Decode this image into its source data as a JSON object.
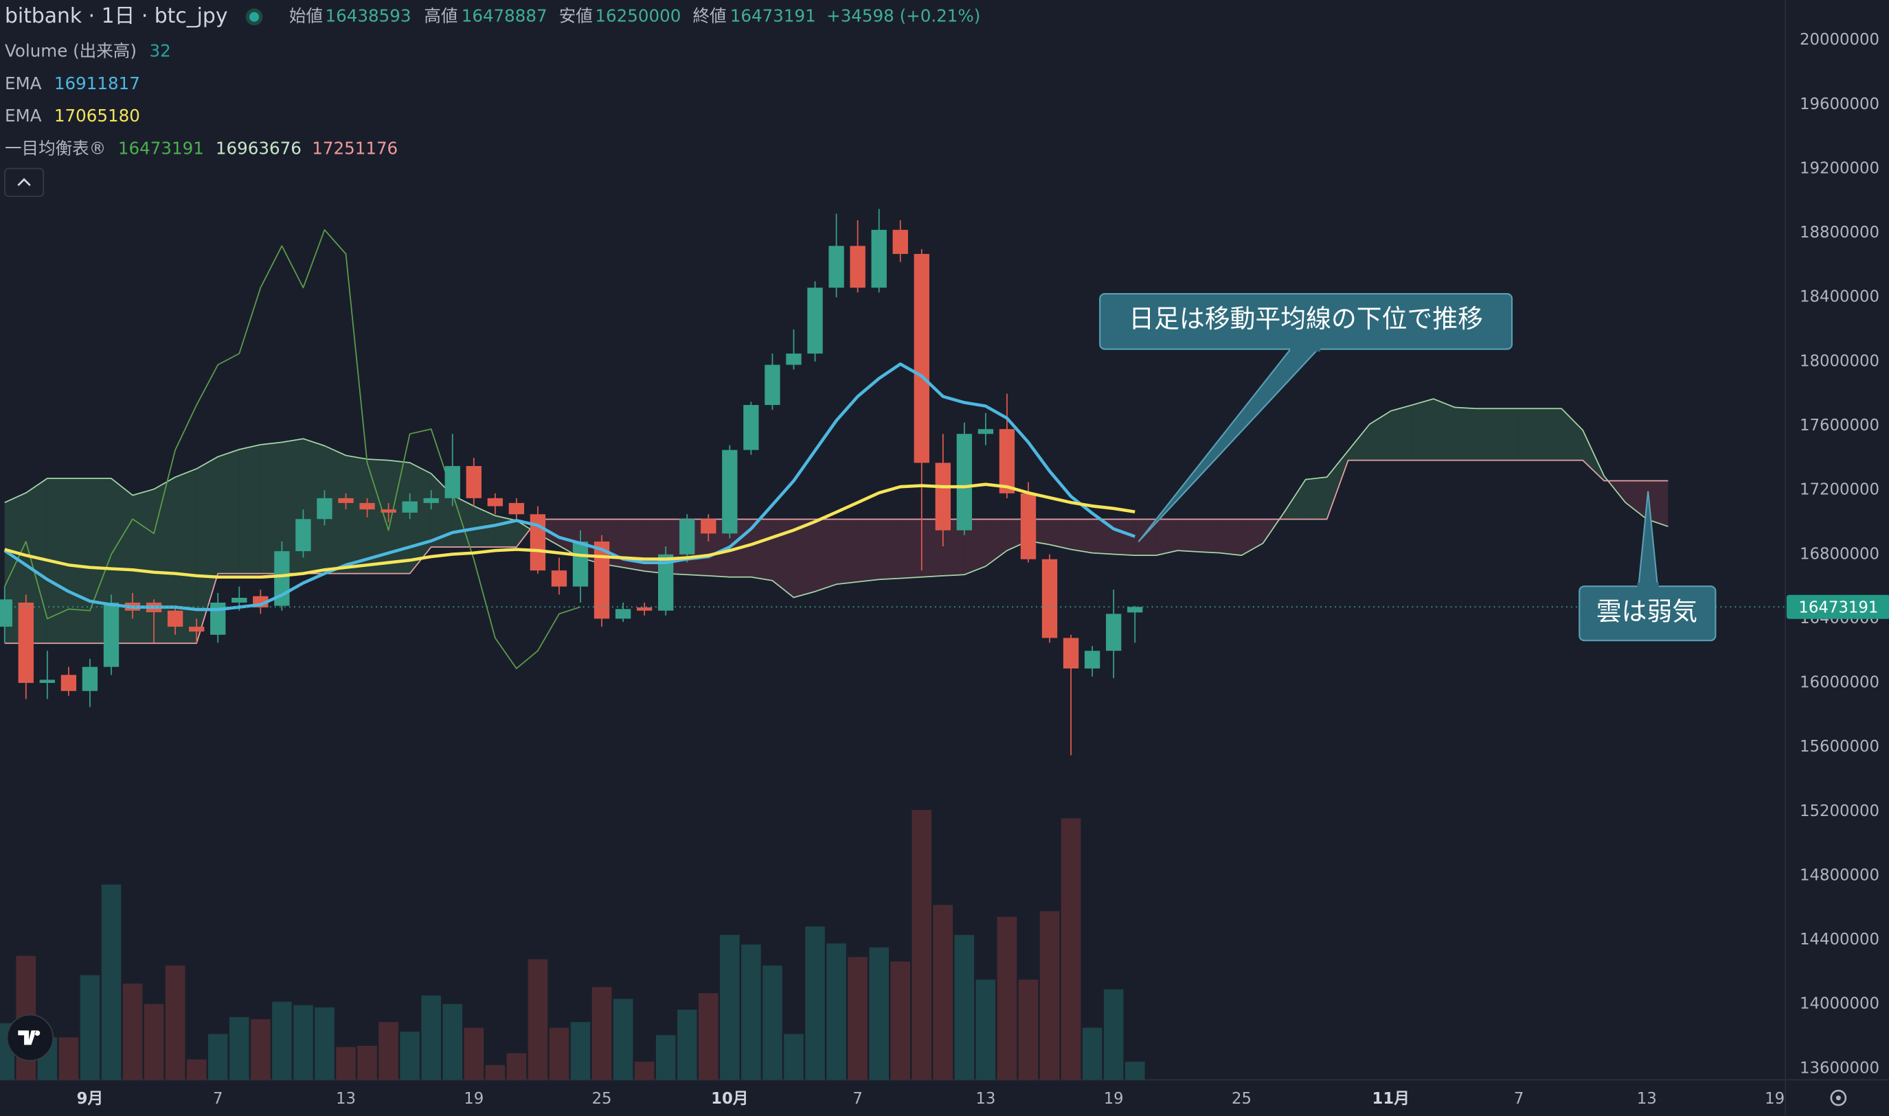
{
  "chart_data": {
    "type": "candlestick",
    "title": "bitbank · 1日 · btc_jpy",
    "ohlc_labels": [
      "始値",
      "高値",
      "安値",
      "終値"
    ],
    "change": "+34598 (+0.21%)",
    "up_color": "#36a08a",
    "down_color": "#e05a4c",
    "categories": [
      null,
      null,
      null,
      null,
      "9月",
      null,
      null,
      null,
      null,
      null,
      "7",
      null,
      null,
      null,
      null,
      null,
      "13",
      null,
      null,
      null,
      null,
      null,
      "19",
      null,
      null,
      null,
      null,
      null,
      "25",
      null,
      null,
      null,
      null,
      null,
      "10月",
      null,
      null,
      null,
      null,
      null,
      "7",
      null,
      null,
      null,
      null,
      null,
      "13",
      null,
      null,
      null,
      null,
      null,
      "19",
      null,
      null,
      null,
      null,
      null,
      "25",
      null,
      null,
      null,
      null,
      null,
      null,
      "11月",
      null,
      null,
      null,
      null,
      null,
      "7",
      null,
      null,
      null,
      null,
      null,
      "13",
      null,
      null,
      null,
      null,
      null,
      "19"
    ],
    "open": [
      16350000,
      16500000,
      16000000,
      16050000,
      15950000,
      16100000,
      16500000,
      16500000,
      16450000,
      16350000,
      16300000,
      16500000,
      16540000,
      16480000,
      16820000,
      17020000,
      17150000,
      17120000,
      17080000,
      17060000,
      17120000,
      17150000,
      17350000,
      17150000,
      17120000,
      17050000,
      16700000,
      16600000,
      16880000,
      16400000,
      16470000,
      16450000,
      16800000,
      17020000,
      16930000,
      17450000,
      17730000,
      17980000,
      18050000,
      18460000,
      18720000,
      18460000,
      18820000,
      18670000,
      17370000,
      16950000,
      17550000,
      17580000,
      17180000,
      16770000,
      16280000,
      16090000,
      16200000,
      16438593,
      null,
      null,
      null,
      null,
      null,
      null,
      null,
      null,
      null,
      null,
      null,
      null,
      null,
      null,
      null,
      null,
      null,
      null,
      null,
      null,
      null,
      null,
      null,
      null,
      null,
      null,
      null,
      null,
      null,
      null
    ],
    "high": [
      16600000,
      16550000,
      16200000,
      16100000,
      16150000,
      16550000,
      16560000,
      16520000,
      16480000,
      16400000,
      16560000,
      16600000,
      16580000,
      16880000,
      17080000,
      17200000,
      17180000,
      17150000,
      17120000,
      17180000,
      17200000,
      17550000,
      17400000,
      17180000,
      17150000,
      17100000,
      16780000,
      16950000,
      16920000,
      16500000,
      16500000,
      16850000,
      17050000,
      17050000,
      17480000,
      17750000,
      18050000,
      18200000,
      18500000,
      18920000,
      18880000,
      18950000,
      18880000,
      18700000,
      17550000,
      17620000,
      17680000,
      17800000,
      17250000,
      16800000,
      16300000,
      16230000,
      16580000,
      16478887,
      null,
      null,
      null,
      null,
      null,
      null,
      null,
      null,
      null,
      null,
      null,
      null,
      null,
      null,
      null,
      null,
      null,
      null,
      null,
      null,
      null,
      null,
      null,
      null,
      null,
      null,
      null,
      null,
      null,
      null
    ],
    "low": [
      16250000,
      15900000,
      15900000,
      15920000,
      15850000,
      16050000,
      16400000,
      16250000,
      16300000,
      16250000,
      16250000,
      16450000,
      16430000,
      16450000,
      16780000,
      16980000,
      17080000,
      17030000,
      17000000,
      17020000,
      17080000,
      17100000,
      17100000,
      17050000,
      17000000,
      16680000,
      16550000,
      16500000,
      16350000,
      16380000,
      16420000,
      16420000,
      16750000,
      16880000,
      16900000,
      17420000,
      17700000,
      17950000,
      18000000,
      18400000,
      18430000,
      18430000,
      18620000,
      16700000,
      16850000,
      16920000,
      17480000,
      17150000,
      16750000,
      16250000,
      15550000,
      16040000,
      16030000,
      16250000,
      null,
      null,
      null,
      null,
      null,
      null,
      null,
      null,
      null,
      null,
      null,
      null,
      null,
      null,
      null,
      null,
      null,
      null,
      null,
      null,
      null,
      null,
      null,
      null,
      null,
      null,
      null,
      null,
      null,
      null
    ],
    "close": [
      16520000,
      16000000,
      16020000,
      15950000,
      16100000,
      16500000,
      16450000,
      16440000,
      16350000,
      16320000,
      16500000,
      16530000,
      16470000,
      16820000,
      17020000,
      17150000,
      17120000,
      17080000,
      17060000,
      17130000,
      17150000,
      17350000,
      17150000,
      17100000,
      17050000,
      16700000,
      16600000,
      16880000,
      16400000,
      16460000,
      16450000,
      16800000,
      17020000,
      16930000,
      17450000,
      17730000,
      17980000,
      18050000,
      18460000,
      18720000,
      18460000,
      18820000,
      18670000,
      17370000,
      16950000,
      17550000,
      17580000,
      17180000,
      16770000,
      16280000,
      16090000,
      16200000,
      16430000,
      16473191,
      null,
      null,
      null,
      null,
      null,
      null,
      null,
      null,
      null,
      null,
      null,
      null,
      null,
      null,
      null,
      null,
      null,
      null,
      null,
      null,
      null,
      null,
      null,
      null,
      null,
      null,
      null,
      null,
      null,
      null
    ],
    "volume": {
      "name": "Volume (出来高)",
      "up_color": "#1d4448",
      "down_color": "#4a2a31",
      "legend_color": "#26a69a",
      "values": [
        100,
        219,
        75,
        75,
        185,
        345,
        170,
        134,
        202,
        36,
        81,
        111,
        107,
        138,
        132,
        128,
        58,
        60,
        102,
        85,
        149,
        134,
        92,
        26,
        47,
        213,
        92,
        102,
        164,
        143,
        32,
        79,
        124,
        153,
        256,
        239,
        202,
        81,
        271,
        241,
        217,
        234,
        209,
        477,
        309,
        256,
        177,
        288,
        177,
        298,
        462,
        92,
        160,
        32,
        null,
        null,
        null,
        null,
        null,
        null,
        null,
        null,
        null,
        null,
        null,
        null,
        null,
        null,
        null,
        null,
        null,
        null,
        null,
        null,
        null,
        null,
        null,
        null,
        null,
        null,
        null,
        null,
        null,
        null
      ]
    },
    "series": [
      {
        "name": "EMA",
        "color": "#4db8e0",
        "values": [
          16824000,
          16734000,
          16644000,
          16569000,
          16509000,
          16487000,
          16472000,
          16472000,
          16472000,
          16457000,
          16457000,
          16472000,
          16487000,
          16547000,
          16622000,
          16681000,
          16734000,
          16771000,
          16809000,
          16846000,
          16884000,
          16936000,
          16959000,
          16981000,
          17011000,
          16981000,
          16906000,
          16869000,
          16831000,
          16771000,
          16749000,
          16749000,
          16771000,
          16786000,
          16846000,
          16959000,
          17108000,
          17258000,
          17446000,
          17633000,
          17783000,
          17895000,
          17985000,
          17910000,
          17783000,
          17745000,
          17723000,
          17648000,
          17498000,
          17318000,
          17161000,
          17056000,
          16959000,
          16911817,
          null,
          null,
          null,
          null,
          null,
          null,
          null,
          null,
          null,
          null,
          null,
          null,
          null,
          null,
          null,
          null,
          null,
          null,
          null,
          null,
          null,
          null,
          null,
          null,
          null,
          null,
          null,
          null,
          null,
          null
        ]
      },
      {
        "name": "EMA",
        "color": "#f5e55a",
        "values": [
          16831000,
          16794000,
          16764000,
          16734000,
          16719000,
          16711000,
          16704000,
          16689000,
          16681000,
          16667000,
          16659000,
          16659000,
          16659000,
          16667000,
          16681000,
          16704000,
          16719000,
          16734000,
          16749000,
          16764000,
          16786000,
          16801000,
          16809000,
          16824000,
          16831000,
          16824000,
          16809000,
          16794000,
          16786000,
          16779000,
          16771000,
          16771000,
          16779000,
          16794000,
          16824000,
          16861000,
          16906000,
          16951000,
          17004000,
          17063000,
          17123000,
          17183000,
          17221000,
          17228000,
          17221000,
          17221000,
          17236000,
          17221000,
          17183000,
          17153000,
          17123000,
          17101000,
          17086000,
          17065180,
          null,
          null,
          null,
          null,
          null,
          null,
          null,
          null,
          null,
          null,
          null,
          null,
          null,
          null,
          null,
          null,
          null,
          null,
          null,
          null,
          null,
          null,
          null,
          null,
          null,
          null,
          null,
          null,
          null,
          null
        ]
      }
    ],
    "ichimoku": {
      "name": "一目均衡表®",
      "legend_values": [
        16473191,
        16963676,
        17251176
      ],
      "legend_colors": [
        "#4caf50",
        "#c8e6c9",
        "#ef9a9a"
      ],
      "bull_cloud_color": "#2a4a3f",
      "bear_cloud_color": "#4a2c3c",
      "span_a": {
        "color": "#a5d6a7",
        "values": [
          17123000,
          17183000,
          17273000,
          17273000,
          17273000,
          17273000,
          17168000,
          17206000,
          17281000,
          17333000,
          17408000,
          17453000,
          17483000,
          17498000,
          17520000,
          17476000,
          17416000,
          17393000,
          17386000,
          17371000,
          17303000,
          17168000,
          17101000,
          17041000,
          17011000,
          16929000,
          16854000,
          16779000,
          16741000,
          16719000,
          16696000,
          16681000,
          16674000,
          16667000,
          16659000,
          16659000,
          16637000,
          16532000,
          16569000,
          16614000,
          16629000,
          16644000,
          16651000,
          16659000,
          16667000,
          16674000,
          16726000,
          16824000,
          16884000,
          16861000,
          16831000,
          16809000,
          16801000,
          16794000,
          16794000,
          16824000,
          16816000,
          16809000,
          16794000,
          16869000,
          17063000,
          17266000,
          17281000,
          17446000,
          17610000,
          17693000,
          17730000,
          17768000,
          17715000,
          17708000,
          17708000,
          17708000,
          17708000,
          17708000,
          17573000,
          17288000,
          17123000,
          17019000,
          16974000,
          null,
          null,
          null,
          null,
          null
        ]
      },
      "span_b": {
        "color": "#e8a3a8",
        "values": [
          16247000,
          16247000,
          16247000,
          16247000,
          16247000,
          16247000,
          16247000,
          16247000,
          16247000,
          16247000,
          16681000,
          16681000,
          16681000,
          16681000,
          16681000,
          16681000,
          16681000,
          16681000,
          16681000,
          16681000,
          16846000,
          16846000,
          16846000,
          16846000,
          16846000,
          17019000,
          17019000,
          17019000,
          17019000,
          17019000,
          17019000,
          17019000,
          17019000,
          17019000,
          17019000,
          17019000,
          17019000,
          17019000,
          17019000,
          17019000,
          17019000,
          17019000,
          17019000,
          17019000,
          17019000,
          17019000,
          17019000,
          17019000,
          17019000,
          17019000,
          17019000,
          17019000,
          17019000,
          17019000,
          17019000,
          17019000,
          17019000,
          17019000,
          17019000,
          17019000,
          17019000,
          17019000,
          17019000,
          17386000,
          17386000,
          17386000,
          17386000,
          17386000,
          17386000,
          17386000,
          17386000,
          17386000,
          17386000,
          17386000,
          17386000,
          17258000,
          17258000,
          17258000,
          17258000,
          null,
          null,
          null,
          null,
          null
        ]
      },
      "lagging": {
        "color": "#5a9e4a",
        "values": [
          16600000,
          16880000,
          16400000,
          16460000,
          16450000,
          16800000,
          17020000,
          16930000,
          17450000,
          17730000,
          17980000,
          18050000,
          18460000,
          18720000,
          18460000,
          18820000,
          18670000,
          17370000,
          16950000,
          17550000,
          17580000,
          17180000,
          16770000,
          16280000,
          16090000,
          16200000,
          16430000,
          16473191,
          null,
          null,
          null,
          null,
          null,
          null,
          null,
          null,
          null,
          null,
          null,
          null,
          null,
          null,
          null,
          null,
          null,
          null,
          null,
          null,
          null,
          null,
          null,
          null,
          null,
          null,
          null,
          null,
          null,
          null,
          null,
          null,
          null,
          null,
          null,
          null,
          null,
          null,
          null,
          null,
          null,
          null,
          null,
          null,
          null,
          null,
          null,
          null,
          null,
          null,
          null,
          null,
          null,
          null,
          null,
          null
        ]
      }
    },
    "ylim": [
      13530000,
      20250000
    ],
    "yticks": [
      13600000,
      14000000,
      14400000,
      14800000,
      15200000,
      15600000,
      16000000,
      16400000,
      16800000,
      17200000,
      17600000,
      18000000,
      18400000,
      18800000,
      19200000,
      19600000,
      20000000
    ],
    "last_price_line": true,
    "annotations": [
      "日足は移動平均線の下位で推移",
      "雲は弱気"
    ]
  }
}
